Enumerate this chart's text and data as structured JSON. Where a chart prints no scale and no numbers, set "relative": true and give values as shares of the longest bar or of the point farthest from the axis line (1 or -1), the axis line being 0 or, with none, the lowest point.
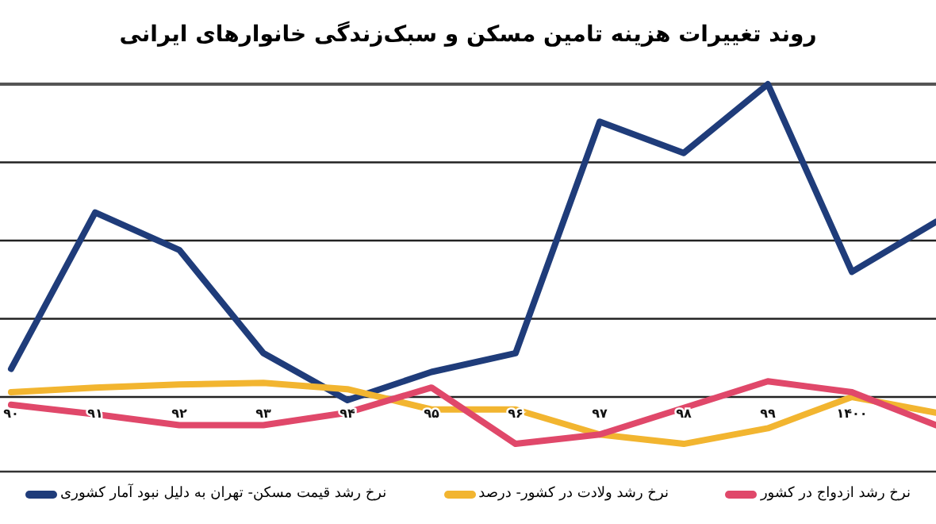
{
  "chart_data": {
    "type": "line",
    "title": "روند تغییرات هزینه تامین مسکن و سبک‌زندگی خانوارهای ایرانی",
    "relative": true,
    "grid": "y",
    "legend": "bottom",
    "categories": [
      "۹۰",
      "۹۱",
      "۹۲",
      "۹۳",
      "۹۴",
      "۹۵",
      "۹۶",
      "۹۷",
      "۹۸",
      "۹۹",
      "۱۴۰۰",
      null
    ],
    "series": [
      {
        "name": "نرخ رشد قیمت مسکن- تهران به دلیل نبود آمار کشوری",
        "color": "#1f3c7a",
        "values": [
          0.09,
          0.59,
          0.47,
          0.14,
          -0.01,
          0.08,
          0.14,
          0.88,
          0.78,
          1,
          0.4,
          0.56
        ]
      },
      {
        "name": "نرخ رشد ولادت در کشور- درصد",
        "color": "#f2b530",
        "values": [
          0.015,
          0.03,
          0.04,
          0.045,
          0.025,
          -0.04,
          -0.04,
          -0.12,
          -0.15,
          -0.1,
          0,
          -0.05
        ]
      },
      {
        "name": "نرخ رشد ازدواج در کشور",
        "color": "#e0486a",
        "values": [
          -0.025,
          -0.055,
          -0.09,
          -0.09,
          -0.05,
          0.03,
          -0.15,
          -0.12,
          -0.035,
          0.05,
          0.015,
          -0.09
        ]
      }
    ]
  }
}
